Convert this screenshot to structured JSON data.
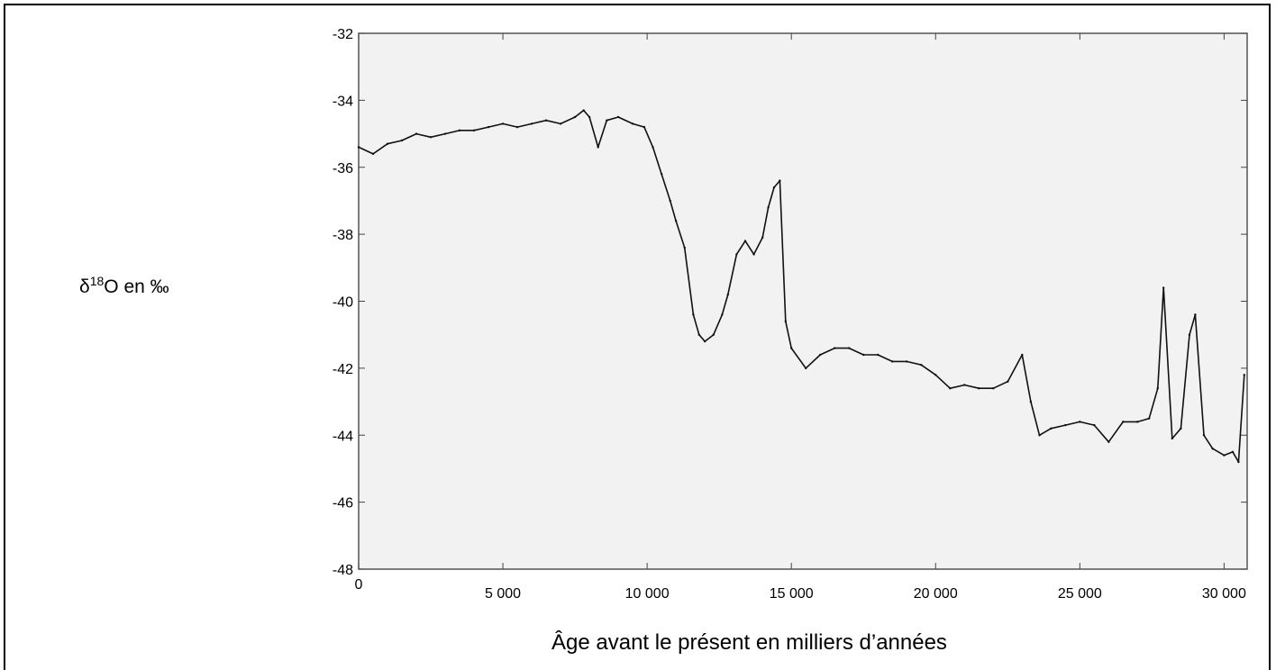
{
  "chart_data": {
    "type": "line",
    "title": "",
    "ylabel_prefix": "δ",
    "ylabel_sup": "18",
    "ylabel_rest": "O en ‰",
    "xlabel": "Âge avant le présent en milliers d’années",
    "xlim": [
      0,
      30800
    ],
    "ylim": [
      -48,
      -32
    ],
    "xticks": [
      0,
      5000,
      10000,
      15000,
      20000,
      25000,
      30000
    ],
    "xtick_labels": [
      "0",
      "5 000",
      "10 000",
      "15 000",
      "20 000",
      "25 000",
      "30 000"
    ],
    "yticks": [
      -32,
      -34,
      -36,
      -38,
      -40,
      -42,
      -44,
      -46,
      -48
    ],
    "ytick_labels": [
      "-32",
      "-34",
      "-36",
      "-38",
      "-40",
      "-42",
      "-44",
      "-46",
      "-48"
    ],
    "grid": false,
    "plot_background": "#f2f2f2",
    "line_color": "#111111",
    "series": [
      {
        "x": [
          0,
          500,
          1000,
          1500,
          2000,
          2500,
          3000,
          3500,
          4000,
          4500,
          5000,
          5500,
          6000,
          6500,
          7000,
          7500,
          7800,
          8000,
          8300,
          8600,
          9000,
          9500,
          9900,
          10200,
          10500,
          10800,
          11000,
          11300,
          11600,
          11800,
          12000,
          12300,
          12600,
          12800,
          13100,
          13400,
          13700,
          14000,
          14200,
          14400,
          14600,
          14800,
          15000,
          15500,
          16000,
          16500,
          17000,
          17500,
          18000,
          18500,
          19000,
          19500,
          20000,
          20500,
          21000,
          21500,
          22000,
          22500,
          23000,
          23300,
          23600,
          24000,
          24500,
          25000,
          25500,
          26000,
          26500,
          27000,
          27400,
          27700,
          27900,
          28200,
          28500,
          28800,
          29000,
          29300,
          29600,
          30000,
          30300,
          30500,
          30700
        ],
        "values": [
          -35.4,
          -35.6,
          -35.3,
          -35.2,
          -35.0,
          -35.1,
          -35.0,
          -34.9,
          -34.9,
          -34.8,
          -34.7,
          -34.8,
          -34.7,
          -34.6,
          -34.7,
          -34.5,
          -34.3,
          -34.5,
          -35.4,
          -34.6,
          -34.5,
          -34.7,
          -34.8,
          -35.4,
          -36.2,
          -37.0,
          -37.6,
          -38.4,
          -40.4,
          -41.0,
          -41.2,
          -41.0,
          -40.4,
          -39.8,
          -38.6,
          -38.2,
          -38.6,
          -38.1,
          -37.2,
          -36.6,
          -36.4,
          -40.6,
          -41.4,
          -42.0,
          -41.6,
          -41.4,
          -41.4,
          -41.6,
          -41.6,
          -41.8,
          -41.8,
          -41.9,
          -42.2,
          -42.6,
          -42.5,
          -42.6,
          -42.6,
          -42.4,
          -41.6,
          -43.0,
          -44.0,
          -43.8,
          -43.7,
          -43.6,
          -43.7,
          -44.2,
          -43.6,
          -43.6,
          -43.5,
          -42.6,
          -39.6,
          -44.1,
          -43.8,
          -41.0,
          -40.4,
          -44.0,
          -44.4,
          -44.6,
          -44.5,
          -44.8,
          -42.2
        ]
      }
    ]
  }
}
